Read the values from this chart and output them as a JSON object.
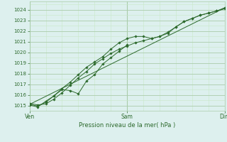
{
  "bg_color": "#ddf0ee",
  "grid_color_major": "#aaccaa",
  "grid_color_minor": "#c8e8c8",
  "line_color": "#2d6a2d",
  "marker_color": "#2d6a2d",
  "xlabel_color": "#2d6a2d",
  "tick_color": "#2d6a2d",
  "title": "Pression niveau de la mer( hPa )",
  "x_ticks_major": [
    0,
    48,
    96
  ],
  "x_tick_labels": [
    "Ven",
    "Sam",
    "Dim"
  ],
  "ylim": [
    1014.5,
    1024.8
  ],
  "xlim": [
    0,
    96
  ],
  "y_ticks": [
    1015,
    1016,
    1017,
    1018,
    1019,
    1020,
    1021,
    1022,
    1023,
    1024
  ],
  "line1_x": [
    0,
    4,
    8,
    12,
    16,
    20,
    24,
    28,
    32,
    36,
    40,
    44,
    48,
    52,
    56,
    60,
    64,
    68,
    72,
    76,
    80,
    84,
    88,
    92,
    96
  ],
  "line1_y": [
    1015.2,
    1015.05,
    1015.15,
    1015.6,
    1016.2,
    1016.9,
    1017.6,
    1018.2,
    1018.9,
    1019.4,
    1019.9,
    1020.3,
    1020.6,
    1020.9,
    1021.1,
    1021.3,
    1021.5,
    1021.9,
    1022.4,
    1022.9,
    1023.2,
    1023.5,
    1023.7,
    1023.9,
    1024.2
  ],
  "line2_x": [
    0,
    4,
    8,
    12,
    16,
    20,
    24,
    28,
    32,
    36,
    40,
    44,
    48,
    52,
    56,
    60,
    64,
    68,
    72,
    76,
    80,
    84,
    88,
    92,
    96
  ],
  "line2_y": [
    1015.1,
    1014.95,
    1015.3,
    1015.9,
    1016.6,
    1017.2,
    1017.9,
    1018.6,
    1019.1,
    1019.6,
    1020.3,
    1020.9,
    1021.3,
    1021.5,
    1021.5,
    1021.3,
    1021.5,
    1021.8,
    1022.4,
    1022.9,
    1023.2,
    1023.5,
    1023.7,
    1023.9,
    1024.1
  ],
  "line3_x": [
    0,
    96
  ],
  "line3_y": [
    1015.1,
    1024.2
  ],
  "line4_x": [
    0,
    4,
    8,
    12,
    16,
    20,
    24,
    28,
    32,
    36,
    40,
    44,
    48
  ],
  "line4_y": [
    1015.05,
    1014.85,
    1015.4,
    1015.9,
    1016.5,
    1016.4,
    1016.1,
    1017.3,
    1017.9,
    1018.9,
    1019.5,
    1020.1,
    1020.7
  ],
  "figsize": [
    3.2,
    2.0
  ],
  "dpi": 100
}
